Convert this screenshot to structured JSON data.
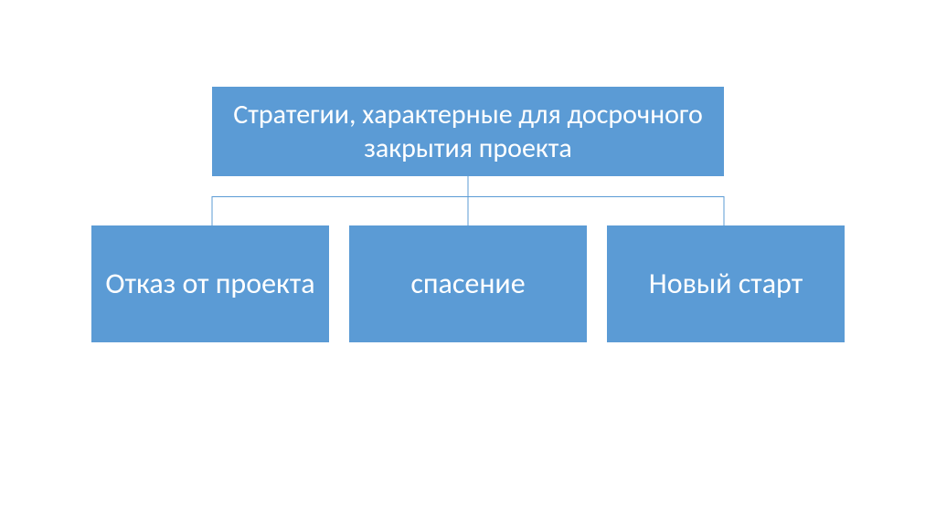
{
  "diagram": {
    "type": "tree",
    "background_color": "#ffffff",
    "box_fill_color": "#5b9bd5",
    "connector_color": "#5b9bd5",
    "text_color": "#ffffff",
    "root": {
      "label": "Стратегии, характерные для досрочного закрытия проекта",
      "fontsize": 30
    },
    "children": [
      {
        "label": "Отказ от проекта",
        "fontsize": 32
      },
      {
        "label": "спасение",
        "fontsize": 32
      },
      {
        "label": "Новый старт",
        "fontsize": 32
      }
    ],
    "layout": {
      "root_width": 560,
      "root_height": 98,
      "child_height": 128,
      "child_gap": 22,
      "connector_stem_height": 22,
      "connector_drop_height": 32,
      "hbar_left_pct": 16,
      "hbar_right_pct": 84,
      "drop_positions_pct": [
        16,
        50,
        84
      ]
    }
  }
}
